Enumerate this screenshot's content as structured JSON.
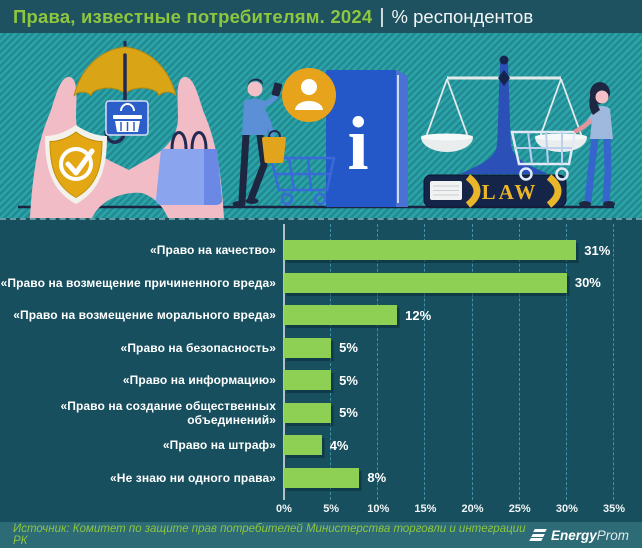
{
  "header": {
    "title": "Права, известные потребителям. 2024",
    "separator": "|",
    "subtitle": "% респондентов"
  },
  "chart_data": {
    "type": "bar",
    "orientation": "horizontal",
    "title": "Права, известные потребителям. 2024",
    "subtitle": "% респондентов",
    "categories": [
      "«Право на качество»",
      "«Право на возмещение причиненного вреда»",
      "«Право на возмещение морального вреда»",
      "«Право на безопасность»",
      "«Право на информацию»",
      "«Право на создание общественных объединений»",
      "«Право на штраф»",
      "«Не знаю ни одного права»"
    ],
    "values": [
      31,
      30,
      12,
      5,
      5,
      5,
      4,
      8
    ],
    "value_labels": [
      "31%",
      "30%",
      "12%",
      "5%",
      "5%",
      "5%",
      "4%",
      "8%"
    ],
    "x_ticks": [
      "0%",
      "5%",
      "10%",
      "15%",
      "20%",
      "25%",
      "30%",
      "35%"
    ],
    "xlim": [
      0,
      35
    ],
    "grid": "vertical-dashed",
    "legend": "none",
    "bar_color": "#8ed054",
    "background_color": "#174f5e"
  },
  "illustration": {
    "description": "consumer protection collage: hands holding umbrella over shopping sign, shield with checkmark, shopping bag, shopper with phone and cart, info book, scales of justice on LAW book, woman with cart",
    "law_book_label": "LAW",
    "info_symbol": "i"
  },
  "footer": {
    "source": "Источник: Комитет по защите прав потребителей Министерства торговли и интеграции РК",
    "logo_bold": "Energy",
    "logo_light": "Prom"
  },
  "colors": {
    "accent_green": "#8dc63f",
    "bar_green": "#8ed054",
    "header_bg": "#1e5260",
    "chart_bg": "#174f5e",
    "footer_bg": "#2d6b77",
    "illustration_bg": "#2ba3a7"
  }
}
